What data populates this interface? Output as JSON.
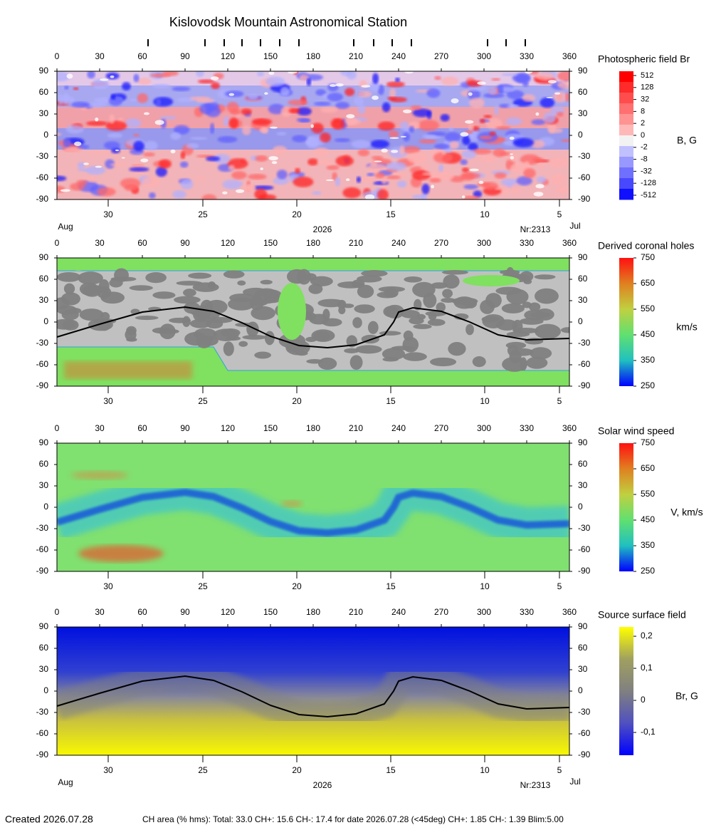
{
  "title": "Kislovodsk Mountain Astronomical Station",
  "footer": {
    "created": "Created  2026.07.28",
    "ch_area": "CH area (% hms): Total: 33.0 CH+: 15.6   CH-: 17.4 for date 2026.07.28 (<45deg) CH+: 1.85     CH-: 1.39 Blim:5.00"
  },
  "chart_data": [
    {
      "type": "heatmap",
      "title": "Photospheric field Br",
      "colorbar_label": "B, G",
      "xlim": [
        0,
        360
      ],
      "xticks": [
        0,
        30,
        60,
        90,
        120,
        150,
        180,
        210,
        240,
        270,
        300,
        330,
        360
      ],
      "ylim": [
        -90,
        90
      ],
      "yticks": [
        90,
        60,
        30,
        0,
        -30,
        -60,
        -90
      ],
      "x2ticks": [
        {
          "value": 36,
          "label": "30"
        },
        {
          "value": 102.5,
          "label": "25"
        },
        {
          "value": 168.5,
          "label": "20"
        },
        {
          "value": 234.5,
          "label": "15"
        },
        {
          "value": 300.5,
          "label": "10"
        },
        {
          "value": 353,
          "label": "5"
        }
      ],
      "bottom_labels": [
        "Aug",
        "2026",
        "Nr:2313",
        "Jul"
      ],
      "observation_marks": [
        64,
        104,
        117.5,
        130,
        143,
        156.5,
        170,
        208.5,
        222.5,
        235.5,
        249,
        302.5,
        315.5,
        329
      ],
      "cscale": "discrete",
      "cticks": [
        512,
        128,
        32,
        8,
        2,
        0,
        -2,
        -8,
        -32,
        -128,
        -512
      ],
      "ccolors": [
        "#ff0000",
        "#ff2a2a",
        "#ff4d4d",
        "#ff7070",
        "#ff9393",
        "#ffb8b8",
        "#f2f2f2",
        "#c0c0ff",
        "#9898ff",
        "#7070ff",
        "#4848ff",
        "#1010ff"
      ]
    },
    {
      "type": "heatmap",
      "title": "Derived coronal holes",
      "colorbar_label": "km/s",
      "xlim": [
        0,
        360
      ],
      "xticks": [
        0,
        30,
        60,
        90,
        120,
        150,
        180,
        210,
        240,
        270,
        300,
        330,
        360
      ],
      "ylim": [
        -90,
        90
      ],
      "yticks": [
        90,
        60,
        30,
        0,
        -30,
        -60,
        -90
      ],
      "x2ticks": [
        {
          "value": 36,
          "label": "30"
        },
        {
          "value": 102.5,
          "label": "25"
        },
        {
          "value": 168.5,
          "label": "20"
        },
        {
          "value": 234.5,
          "label": "15"
        },
        {
          "value": 300.5,
          "label": "10"
        },
        {
          "value": 353,
          "label": "5"
        }
      ],
      "cscale": "linear",
      "clim": [
        250,
        750
      ],
      "cticks": [
        750,
        650,
        550,
        450,
        350,
        250
      ],
      "ccolors": [
        "#ff1010",
        "#e08020",
        "#c0d040",
        "#60e070",
        "#20c0c0",
        "#0000ff"
      ],
      "neutral_line": {
        "color": "#000000",
        "x": [
          0,
          30,
          60,
          90,
          110,
          130,
          150,
          170,
          190,
          210,
          230,
          236.5,
          240,
          250,
          270,
          290,
          310,
          330,
          360
        ],
        "y": [
          -21,
          -3,
          14,
          21,
          15,
          -1,
          -20,
          -33,
          -36,
          -32,
          -18,
          0,
          14,
          20,
          15,
          0,
          -18,
          -25,
          -23
        ]
      }
    },
    {
      "type": "heatmap",
      "title": "Solar wind speed",
      "colorbar_label": "V, km/s",
      "xlim": [
        0,
        360
      ],
      "xticks": [
        0,
        30,
        60,
        90,
        120,
        150,
        180,
        210,
        240,
        270,
        300,
        330,
        360
      ],
      "ylim": [
        -90,
        90
      ],
      "yticks": [
        90,
        60,
        30,
        0,
        -30,
        -60,
        -90
      ],
      "x2ticks": [
        {
          "value": 36,
          "label": "30"
        },
        {
          "value": 102.5,
          "label": "25"
        },
        {
          "value": 168.5,
          "label": "20"
        },
        {
          "value": 234.5,
          "label": "15"
        },
        {
          "value": 300.5,
          "label": "10"
        },
        {
          "value": 353,
          "label": "5"
        }
      ],
      "cscale": "linear",
      "clim": [
        250,
        750
      ],
      "cticks": [
        750,
        650,
        550,
        450,
        350,
        250
      ],
      "ccolors": [
        "#ff1010",
        "#e08020",
        "#c0d040",
        "#60e070",
        "#20c0c0",
        "#0000ff"
      ]
    },
    {
      "type": "heatmap",
      "title": "Source surface field",
      "colorbar_label": "Br, G",
      "xlim": [
        0,
        360
      ],
      "xticks": [
        0,
        30,
        60,
        90,
        120,
        150,
        180,
        210,
        240,
        270,
        300,
        330,
        360
      ],
      "ylim": [
        -90,
        90
      ],
      "yticks": [
        90,
        60,
        30,
        0,
        -30,
        -60,
        -90
      ],
      "x2ticks": [
        {
          "value": 36,
          "label": "30"
        },
        {
          "value": 102.5,
          "label": "25"
        },
        {
          "value": 168.5,
          "label": "20"
        },
        {
          "value": 234.5,
          "label": "15"
        },
        {
          "value": 300.5,
          "label": "10"
        },
        {
          "value": 353,
          "label": "5"
        }
      ],
      "bottom_labels": [
        "Aug",
        "2026",
        "Nr:2313",
        "Jul"
      ],
      "cscale": "linear",
      "clim": [
        -0.171,
        0.229
      ],
      "cticks": [
        {
          "value": 0.2,
          "label": "0,2"
        },
        {
          "value": 0.1,
          "label": "0,1"
        },
        0,
        {
          "value": -0.1,
          "label": "-0,1"
        }
      ],
      "ccolors": [
        "#ffff00",
        "#a0a060",
        "#808080",
        "#5050c0",
        "#0000ff"
      ],
      "neutral_line": {
        "color": "#000000",
        "x": [
          0,
          30,
          60,
          90,
          110,
          130,
          150,
          170,
          190,
          210,
          230,
          236.5,
          240,
          250,
          270,
          290,
          310,
          330,
          360
        ],
        "y": [
          -21,
          -3,
          14,
          21,
          15,
          -1,
          -20,
          -33,
          -36,
          -32,
          -18,
          0,
          14,
          20,
          15,
          0,
          -18,
          -25,
          -23
        ]
      }
    }
  ]
}
